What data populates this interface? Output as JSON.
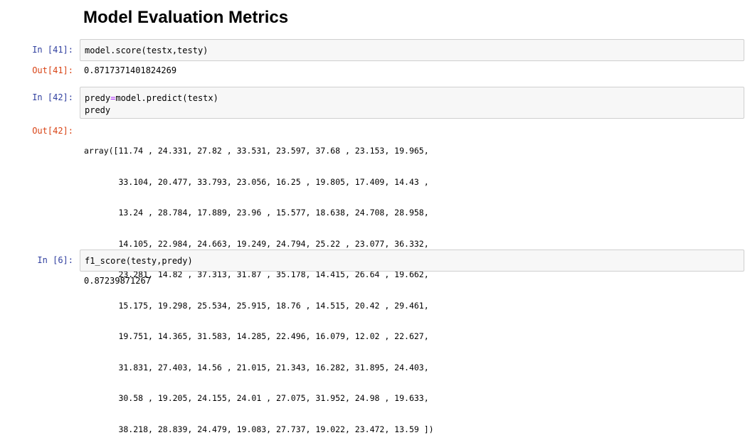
{
  "notebook": {
    "heading": "Model Evaluation Metrics",
    "cells": [
      {
        "in_prompt": "In [41]:",
        "code": "model.score(testx,testy)",
        "out_prompt": "Out[41]:",
        "output": "0.8717371401824269"
      },
      {
        "in_prompt": "In [42]:",
        "code_line1_var": "predy",
        "code_line1_op": "=",
        "code_line1_call": "model.predict(testx)",
        "code_line2": "predy",
        "out_prompt": "Out[42]:",
        "output_lines": [
          "array([11.74 , 24.331, 27.82 , 33.531, 23.597, 37.68 , 23.153, 19.965,",
          "       33.104, 20.477, 33.793, 23.056, 16.25 , 19.805, 17.409, 14.43 ,",
          "       13.24 , 28.784, 17.889, 23.96 , 15.577, 18.638, 24.708, 28.958,",
          "       14.105, 22.984, 24.663, 19.249, 24.794, 25.22 , 23.077, 36.332,",
          "       23.281, 14.82 , 37.313, 31.87 , 35.178, 14.415, 26.64 , 19.662,",
          "       15.175, 19.298, 25.534, 25.915, 18.76 , 14.515, 20.42 , 29.461,",
          "       19.751, 14.365, 31.583, 14.285, 22.496, 16.079, 12.02 , 22.627,",
          "       31.831, 27.403, 14.56 , 21.015, 21.343, 16.282, 31.895, 24.403,",
          "       30.58 , 19.205, 24.155, 24.01 , 27.075, 31.952, 24.98 , 19.633,",
          "       38.218, 28.839, 24.479, 19.083, 27.737, 19.022, 23.472, 13.59 ])"
        ]
      },
      {
        "in_prompt": "In [6]:",
        "code": "f1_score(testy,predy)",
        "output": "0.87239871267"
      }
    ]
  }
}
